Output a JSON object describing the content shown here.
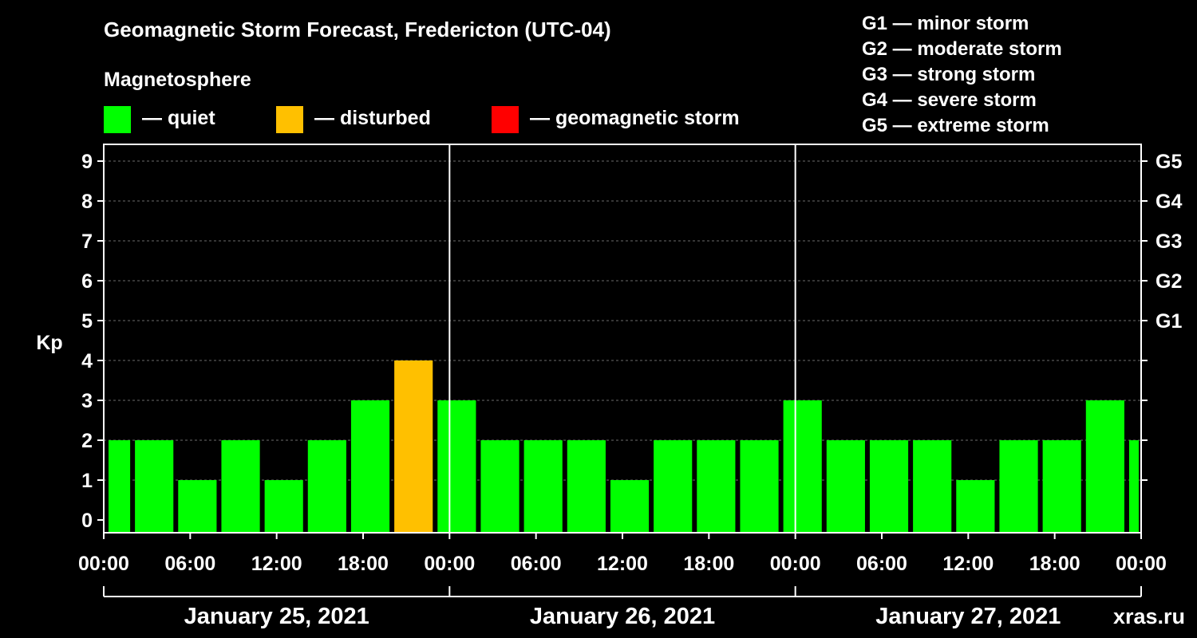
{
  "header": {
    "title": "Geomagnetic Storm Forecast, Fredericton (UTC-04)",
    "subtitle": "Magnetosphere"
  },
  "legend": {
    "items": [
      {
        "label": "— quiet",
        "color": "#00ff00"
      },
      {
        "label": "— disturbed",
        "color": "#ffc000"
      },
      {
        "label": "— geomagnetic storm",
        "color": "#ff0000"
      }
    ]
  },
  "storm_scale": [
    "G1 — minor storm",
    "G2 — moderate storm",
    "G3 — strong storm",
    "G4 — severe storm",
    "G5 — extreme storm"
  ],
  "watermark": "xras.ru",
  "chart_data": {
    "type": "bar",
    "ylabel": "Kp",
    "ylim": [
      0,
      9
    ],
    "grid": true,
    "y_ticks": [
      0,
      1,
      2,
      3,
      4,
      5,
      6,
      7,
      8,
      9
    ],
    "right_ticks": [
      {
        "value": 5,
        "label": "G1"
      },
      {
        "value": 6,
        "label": "G2"
      },
      {
        "value": 7,
        "label": "G3"
      },
      {
        "value": 8,
        "label": "G4"
      },
      {
        "value": 9,
        "label": "G5"
      }
    ],
    "x_tick_labels": [
      "00:00",
      "06:00",
      "12:00",
      "18:00",
      "00:00",
      "06:00",
      "12:00",
      "18:00",
      "00:00",
      "06:00",
      "12:00",
      "18:00",
      "00:00",
      "06:00",
      "12:00",
      "18:00",
      "00:00"
    ],
    "days": [
      "January 25, 2021",
      "January 26, 2021",
      "January 27, 2021"
    ],
    "interval_hours": 3,
    "start_offset_hours": -1,
    "values": [
      2,
      2,
      1,
      2,
      1,
      2,
      3,
      4,
      3,
      2,
      2,
      2,
      1,
      2,
      2,
      2,
      3,
      2,
      2,
      2,
      1,
      2,
      2,
      3,
      2
    ],
    "colors": {
      "quiet": "#00ff00",
      "disturbed": "#ffc000",
      "storm": "#ff0000"
    },
    "thresholds": {
      "disturbed": 4,
      "storm": 5
    }
  }
}
